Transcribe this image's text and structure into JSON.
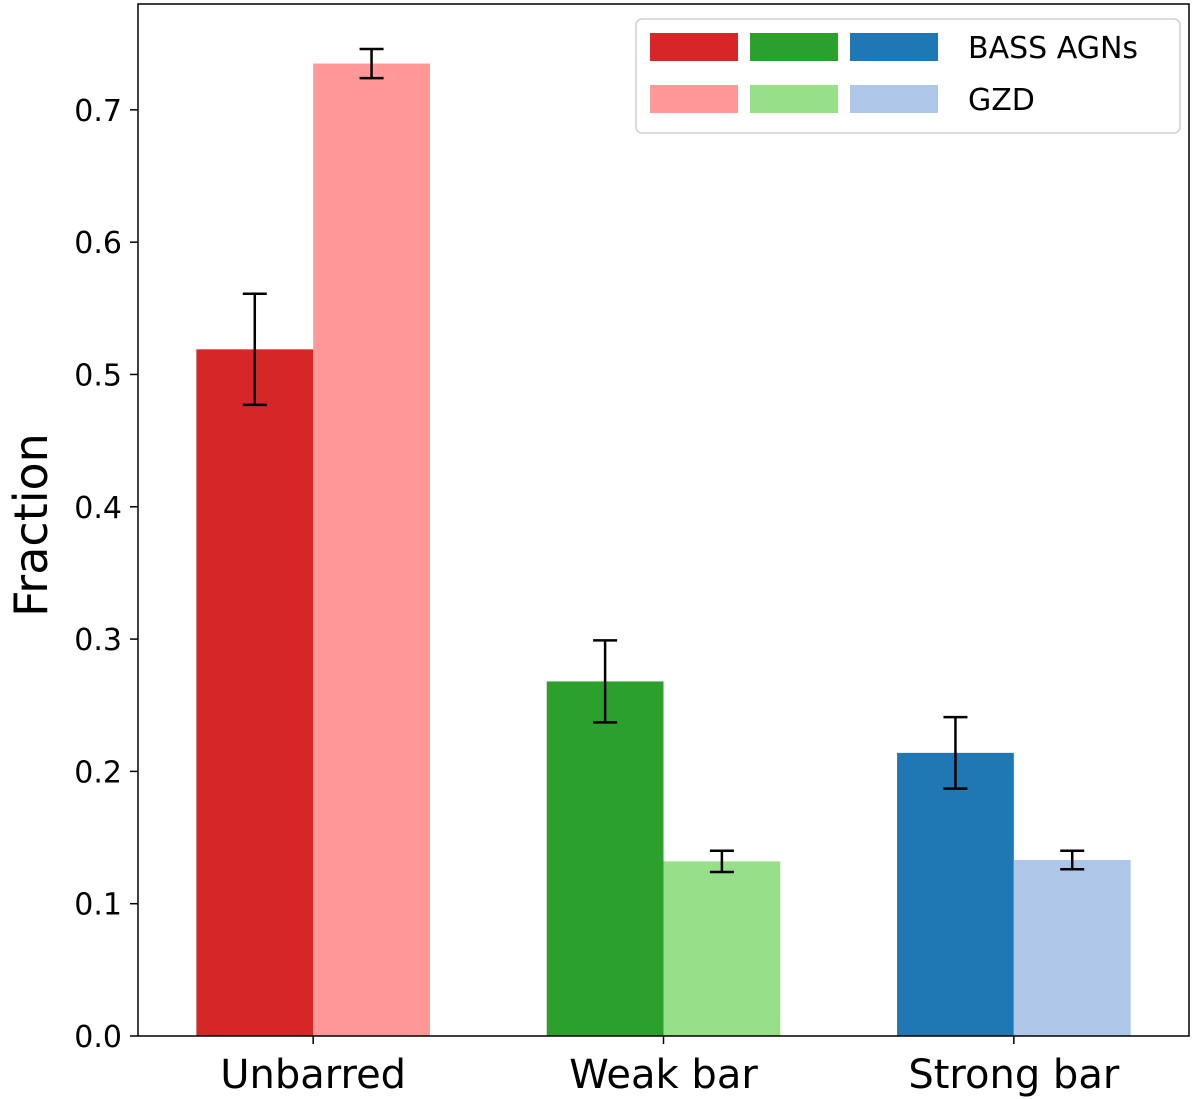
{
  "chart_data": {
    "type": "bar",
    "title": "",
    "xlabel": "",
    "ylabel": "Fraction",
    "ylim": [
      0.0,
      0.78
    ],
    "yticks": [
      "0.0",
      "0.1",
      "0.2",
      "0.3",
      "0.4",
      "0.5",
      "0.6",
      "0.7"
    ],
    "categories": [
      "Unbarred",
      "Weak bar",
      "Strong bar"
    ],
    "series": [
      {
        "name": "BASS AGNs",
        "values": [
          0.519,
          0.268,
          0.214
        ],
        "errors": [
          0.042,
          0.031,
          0.027
        ],
        "colors": [
          "#d62728",
          "#2ca02c",
          "#1f77b4"
        ]
      },
      {
        "name": "GZD",
        "values": [
          0.735,
          0.132,
          0.133
        ],
        "errors": [
          0.011,
          0.008,
          0.007
        ],
        "colors": [
          "#ff9896",
          "#98df8a",
          "#aec7e8"
        ]
      }
    ],
    "legend": {
      "position": "top-right",
      "entries": [
        "BASS AGNs",
        "GZD"
      ]
    }
  }
}
